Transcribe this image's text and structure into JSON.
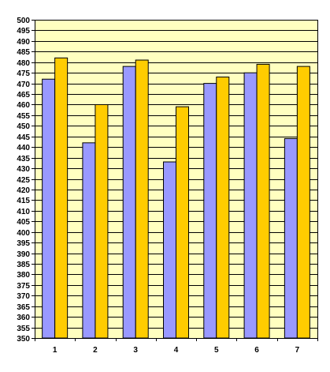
{
  "chart_data": {
    "type": "bar",
    "categories": [
      "1",
      "2",
      "3",
      "4",
      "5",
      "6",
      "7"
    ],
    "series": [
      {
        "values": [
          472,
          442,
          478,
          433,
          470,
          475,
          444
        ]
      },
      {
        "values": [
          482,
          460,
          481,
          459,
          473,
          479,
          478
        ]
      }
    ],
    "ylim": [
      350,
      500
    ],
    "ytick_step": 5,
    "yticks": [
      "350",
      "355",
      "360",
      "365",
      "370",
      "375",
      "380",
      "385",
      "390",
      "395",
      "400",
      "405",
      "410",
      "415",
      "420",
      "425",
      "430",
      "435",
      "440",
      "445",
      "450",
      "455",
      "460",
      "465",
      "470",
      "475",
      "480",
      "485",
      "490",
      "495",
      "500"
    ],
    "grid": true,
    "legend": "none",
    "colors": {
      "plot_background": "#ffffc0",
      "gridline": "#000000",
      "series": [
        "#9999ff",
        "#ffcc00"
      ],
      "bar_edge": "#000000"
    }
  }
}
